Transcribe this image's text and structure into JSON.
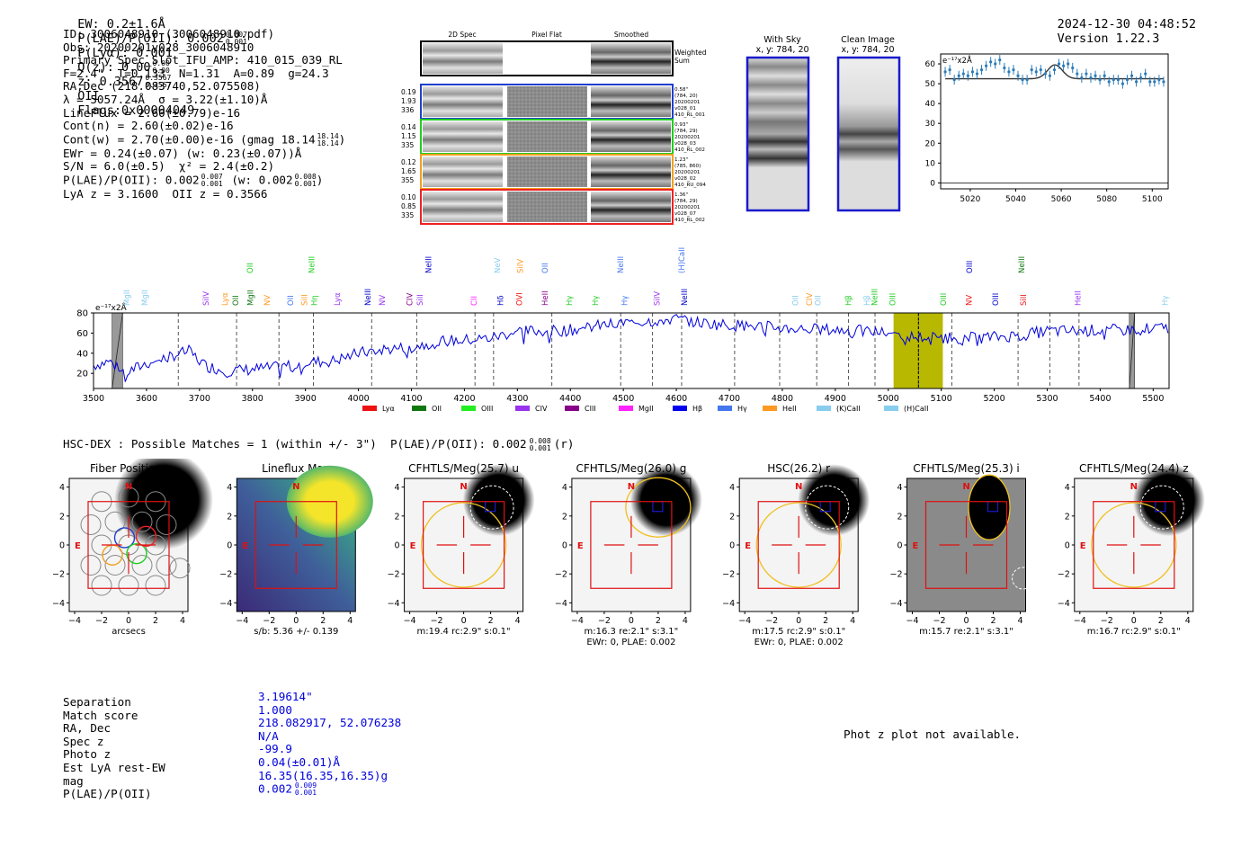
{
  "header": {
    "ew": "EW: 0.2±1.6Å",
    "plae": "P(LAE)/P(OII): 0.002",
    "plae_hi": "0.007",
    "plae_lo": "0.001",
    "plya": "P(Lyα): 0.001",
    "qz": "Q(z): 0.00",
    "qz_hi": "0.00",
    "qz_lo": "0.00",
    "z": "z: 0.3567",
    "z_hi": "0.3567",
    "z_lo": "0.3567",
    "z_line": "OII",
    "flags": "Flags:0x00004049",
    "datetime": "2024-12-30 04:48:52",
    "version": "Version 1.22.3"
  },
  "info": {
    "lines": [
      "ID: 3006048910 (3006048910.pdf)",
      "Obs: 20200201v028_3006048910",
      "Primary Spec_Slot_IFU_AMP: 410_015_039_RL",
      "F=2.4\"  T=0.133  N=1.31  A=0.89  g=24.3",
      "RA,Dec (218.083740,52.075508)",
      "λ = 5057.24Å  σ = 3.22(±1.10)Å",
      "LineFlux = 2.60(±0.79)e-16",
      "Cont(n) = 2.60(±0.02)e-16",
      "Cont(w) = 2.70(±0.00)e-16 (gmag 18.14",
      "EWr = 0.24(±0.07) (w: 0.23(±0.07))Å",
      "S/N = 6.0(±0.5)  χ² = 2.4(±0.2)",
      "P(LAE)/P(OII): 0.002",
      "LyA z = 3.1600  OII z = 0.3566"
    ],
    "gmag_hi": "18.14",
    "gmag_lo": "18.14",
    "plae_hi": "0.007",
    "plae_lo": "0.001",
    "plae_w": "(w: 0.002",
    "plae_w_hi": "0.008",
    "plae_w_lo": "0.001",
    "plae_w_close": ")"
  },
  "spec2d": {
    "col_titles": [
      "2D Spec",
      "Pixel Flat",
      "Smoothed"
    ],
    "weighted_sum": [
      "Weighted",
      "Sum"
    ],
    "fibers": [
      {
        "left": [
          "0.19",
          "1.93",
          "336"
        ],
        "right": [
          "0.58\"",
          "(784, 20)",
          "20200201",
          "v028_01",
          "410_RL_001"
        ],
        "color": "#1f3fcc"
      },
      {
        "left": [
          "0.14",
          "1.15",
          "335"
        ],
        "right": [
          "0.93\"",
          "(784, 29)",
          "20200201",
          "v028_03",
          "410_RL_002"
        ],
        "color": "#22cc22"
      },
      {
        "left": [
          "0.12",
          "1.65",
          "355"
        ],
        "right": [
          "1.23\"",
          "(785, 860)",
          "20200201",
          "v028_02",
          "410_RU_094"
        ],
        "color": "#f0a020"
      },
      {
        "left": [
          "0.10",
          "0.85",
          "335"
        ],
        "right": [
          "1.36\"",
          "(784, 29)",
          "20200201",
          "v028_07",
          "410_RL_002"
        ],
        "color": "#ee2222"
      }
    ]
  },
  "sky": {
    "with_sky": [
      "With Sky",
      "x, y: 784, 20"
    ],
    "clean": [
      "Clean Image",
      "x, y: 784, 20"
    ]
  },
  "zoom_chart": {
    "type": "scatter",
    "ylabel": "e⁻¹⁷x2Å",
    "xlim": [
      5007,
      5107
    ],
    "ylim": [
      -3,
      65
    ],
    "xticks": [
      5020,
      5040,
      5060,
      5080,
      5100
    ],
    "yticks": [
      0,
      10,
      20,
      30,
      40,
      50,
      60
    ],
    "points_x": [
      5009,
      5011,
      5013,
      5015,
      5017,
      5019,
      5021,
      5023,
      5025,
      5027,
      5029,
      5031,
      5033,
      5035,
      5037,
      5039,
      5041,
      5043,
      5045,
      5047,
      5049,
      5051,
      5053,
      5055,
      5057,
      5059,
      5061,
      5063,
      5065,
      5067,
      5069,
      5071,
      5073,
      5075,
      5077,
      5079,
      5081,
      5083,
      5085,
      5087,
      5089,
      5091,
      5093,
      5095,
      5097,
      5099,
      5101,
      5103,
      5105
    ],
    "points_y": [
      56,
      57,
      52,
      54,
      55,
      54,
      56,
      55,
      57,
      59,
      61,
      60,
      62,
      58,
      56,
      57,
      54,
      52,
      52,
      57,
      56,
      57,
      55,
      54,
      57,
      60,
      59,
      60,
      58,
      55,
      53,
      55,
      53,
      54,
      52,
      54,
      51,
      52,
      52,
      50,
      52,
      54,
      51,
      53,
      55,
      51,
      51,
      52,
      51
    ],
    "fit_base": 52.5,
    "fit_amp": 7,
    "fit_center": 5057.24,
    "fit_sigma": 3.22
  },
  "main_chart": {
    "type": "line",
    "ylabel": "e⁻¹⁷x2Å",
    "xlim": [
      3500,
      5530
    ],
    "ylim": [
      5,
      80
    ],
    "xticks": [
      3500,
      3600,
      3700,
      3800,
      3900,
      4000,
      4100,
      4200,
      4300,
      4400,
      4500,
      4600,
      4700,
      4800,
      4900,
      5000,
      5100,
      5200,
      5300,
      5400,
      5500
    ],
    "yticks": [
      20,
      40,
      60,
      80
    ],
    "highlight_x": [
      5010,
      5103
    ],
    "center_x": 5057,
    "bad_regions": [
      [
        3535,
        3555
      ],
      [
        5455,
        5465
      ]
    ],
    "dashed_x": [
      3660,
      3770,
      3850,
      3915,
      4025,
      4110,
      4220,
      4255,
      4365,
      4495,
      4555,
      4610,
      4710,
      4795,
      4865,
      4925,
      4975,
      5057,
      5120,
      5245,
      5305,
      5360
    ],
    "spectrum_anchors": [
      [
        3500,
        28
      ],
      [
        3530,
        32
      ],
      [
        3560,
        20
      ],
      [
        3600,
        30
      ],
      [
        3650,
        38
      ],
      [
        3680,
        42
      ],
      [
        3710,
        28
      ],
      [
        3750,
        22
      ],
      [
        3800,
        24
      ],
      [
        3850,
        26
      ],
      [
        3900,
        31
      ],
      [
        3950,
        32
      ],
      [
        4000,
        40
      ],
      [
        4050,
        44
      ],
      [
        4100,
        46
      ],
      [
        4150,
        52
      ],
      [
        4200,
        53
      ],
      [
        4250,
        55
      ],
      [
        4300,
        62
      ],
      [
        4350,
        62
      ],
      [
        4400,
        63
      ],
      [
        4450,
        67
      ],
      [
        4500,
        70
      ],
      [
        4550,
        72
      ],
      [
        4600,
        74
      ],
      [
        4650,
        70
      ],
      [
        4700,
        68
      ],
      [
        4750,
        67
      ],
      [
        4800,
        65
      ],
      [
        4850,
        64
      ],
      [
        4900,
        63
      ],
      [
        4950,
        62
      ],
      [
        5000,
        60
      ],
      [
        5050,
        56
      ],
      [
        5100,
        56
      ],
      [
        5150,
        55
      ],
      [
        5200,
        56
      ],
      [
        5250,
        58
      ],
      [
        5300,
        62
      ],
      [
        5350,
        62
      ],
      [
        5400,
        63
      ],
      [
        5450,
        63
      ],
      [
        5500,
        65
      ],
      [
        5530,
        65
      ]
    ],
    "legend": [
      {
        "label": "Lyα",
        "color": "#ee1111"
      },
      {
        "label": "OII",
        "color": "#117711"
      },
      {
        "label": "OIII",
        "color": "#22ee22"
      },
      {
        "label": "CIV",
        "color": "#9933ee"
      },
      {
        "label": "CIII",
        "color": "#880088"
      },
      {
        "label": "MgII",
        "color": "#ff22ff"
      },
      {
        "label": "Hβ",
        "color": "#0000ee"
      },
      {
        "label": "Hγ",
        "color": "#4477ee"
      },
      {
        "label": "HeII",
        "color": "#ff9922"
      },
      {
        "label": "(K)CaII",
        "color": "#88ccee"
      },
      {
        "label": "(H)CaII",
        "color": "#88ccee"
      }
    ],
    "line_labels": [
      {
        "x": 3563,
        "t": "MgII",
        "c": "#88ccee",
        "lvl": 0
      },
      {
        "x": 3597,
        "t": "MgII",
        "c": "#88ccee",
        "lvl": 0
      },
      {
        "x": 3712,
        "t": "SiIV",
        "c": "#9933ee",
        "lvl": 0
      },
      {
        "x": 3748,
        "t": "Lyα",
        "c": "#ff9922",
        "lvl": 0
      },
      {
        "x": 3768,
        "t": "OII",
        "c": "#117711",
        "lvl": 0
      },
      {
        "x": 3795,
        "t": "OII",
        "c": "#22cc22",
        "lvl": 2
      },
      {
        "x": 3796,
        "t": "MgII",
        "c": "#117711",
        "lvl": 0
      },
      {
        "x": 3828,
        "t": "NV",
        "c": "#ff9922",
        "lvl": 0
      },
      {
        "x": 3872,
        "t": "OII",
        "c": "#4477ee",
        "lvl": 0
      },
      {
        "x": 3898,
        "t": "SiII",
        "c": "#ff9922",
        "lvl": 0
      },
      {
        "x": 3917,
        "t": "Hη",
        "c": "#22cc22",
        "lvl": 0
      },
      {
        "x": 3912,
        "t": "NeIII",
        "c": "#22cc22",
        "lvl": 2
      },
      {
        "x": 3960,
        "t": "Lyα",
        "c": "#9933ee",
        "lvl": 0
      },
      {
        "x": 4018,
        "t": "NeIII",
        "c": "#0000cc",
        "lvl": 0
      },
      {
        "x": 4045,
        "t": "NV",
        "c": "#9933ee",
        "lvl": 0
      },
      {
        "x": 4097,
        "t": "CIV",
        "c": "#880088",
        "lvl": 0
      },
      {
        "x": 4116,
        "t": "SiII",
        "c": "#9933ee",
        "lvl": 0
      },
      {
        "x": 4132,
        "t": "NeIII",
        "c": "#0000cc",
        "lvl": 2
      },
      {
        "x": 4218,
        "t": "CII",
        "c": "#ff22ff",
        "lvl": 0
      },
      {
        "x": 4268,
        "t": "Hδ",
        "c": "#0000cc",
        "lvl": 0
      },
      {
        "x": 4262,
        "t": "NeV",
        "c": "#88ccee",
        "lvl": 2
      },
      {
        "x": 4304,
        "t": "OVI",
        "c": "#ee1111",
        "lvl": 0
      },
      {
        "x": 4305,
        "t": "SiIV",
        "c": "#ff9922",
        "lvl": 2
      },
      {
        "x": 4352,
        "t": "HeII",
        "c": "#880088",
        "lvl": 0
      },
      {
        "x": 4352,
        "t": "OII",
        "c": "#4477ee",
        "lvl": 2
      },
      {
        "x": 4398,
        "t": "Hγ",
        "c": "#22cc22",
        "lvl": 0
      },
      {
        "x": 4447,
        "t": "Hγ",
        "c": "#22cc22",
        "lvl": 0
      },
      {
        "x": 4502,
        "t": "Hγ",
        "c": "#4477ee",
        "lvl": 0
      },
      {
        "x": 4495,
        "t": "NeIII",
        "c": "#4477ee",
        "lvl": 2
      },
      {
        "x": 4563,
        "t": "SiIV",
        "c": "#9933ee",
        "lvl": 0
      },
      {
        "x": 4615,
        "t": "NeIII",
        "c": "#0000cc",
        "lvl": 0
      },
      {
        "x": 4610,
        "t": "(H)CaII",
        "c": "#4477ee",
        "lvl": 2
      },
      {
        "x": 4825,
        "t": "OII",
        "c": "#88ccee",
        "lvl": 0
      },
      {
        "x": 4851,
        "t": "CIV",
        "c": "#ff9922",
        "lvl": 0
      },
      {
        "x": 4867,
        "t": "OII",
        "c": "#88ccee",
        "lvl": 0
      },
      {
        "x": 4925,
        "t": "Hβ",
        "c": "#22cc22",
        "lvl": 0
      },
      {
        "x": 4960,
        "t": "Hβ",
        "c": "#88ccee",
        "lvl": 0
      },
      {
        "x": 4974,
        "t": "NeIII",
        "c": "#22cc22",
        "lvl": 0
      },
      {
        "x": 5008,
        "t": "OIII",
        "c": "#22cc22",
        "lvl": 0
      },
      {
        "x": 5104,
        "t": "OIII",
        "c": "#22cc22",
        "lvl": 0
      },
      {
        "x": 5152,
        "t": "NV",
        "c": "#ee1111",
        "lvl": 0
      },
      {
        "x": 5153,
        "t": "OIII",
        "c": "#0000cc",
        "lvl": 2
      },
      {
        "x": 5202,
        "t": "OIII",
        "c": "#0000cc",
        "lvl": 0
      },
      {
        "x": 5255,
        "t": "SiII",
        "c": "#ee1111",
        "lvl": 0
      },
      {
        "x": 5252,
        "t": "NeIII",
        "c": "#117711",
        "lvl": 2
      },
      {
        "x": 5358,
        "t": "HeII",
        "c": "#9933ee",
        "lvl": 0
      },
      {
        "x": 5522,
        "t": "Hγ",
        "c": "#88ccee",
        "lvl": 0
      }
    ]
  },
  "hsc": {
    "title": "HSC-DEX : Possible Matches = 1 (within +/- 3\")  P(LAE)/P(OII): 0.002",
    "plae_hi": "0.008",
    "plae_lo": "0.001",
    "suffix": "(r)"
  },
  "cutouts": [
    {
      "title": "Fiber Positions",
      "sub1": "arcsecs",
      "sub2": "",
      "kind": "fiber"
    },
    {
      "title": "Lineflux Map",
      "sub1": "s/b: 5.36 +/- 0.139",
      "sub2": "",
      "kind": "flux"
    },
    {
      "title": "CFHTLS/Meg(25.7) u",
      "sub1": "m:19.4 rc:2.9\"  s:0.1\"",
      "sub2": "",
      "kind": "u"
    },
    {
      "title": "CFHTLS/Meg(26.0) g",
      "sub1": "m:16.3  re:2.1\"  s:3.1\"",
      "sub2": "EWr: 0, PLAE: 0.002",
      "kind": "g"
    },
    {
      "title": "HSC(26.2) r",
      "sub1": "m:17.5 rc:2.9\"  s:0.1\"",
      "sub2": "EWr: 0, PLAE: 0.002",
      "kind": "r"
    },
    {
      "title": "CFHTLS/Meg(25.3) i",
      "sub1": "m:15.7  re:2.1\"  s:3.1\"",
      "sub2": "",
      "kind": "i"
    },
    {
      "title": "CFHTLS/Meg(24.4) z",
      "sub1": "m:16.7 rc:2.9\"  s:0.1\"",
      "sub2": "",
      "kind": "z"
    }
  ],
  "cutout_axes": {
    "ticks": [
      "−4",
      "−2",
      "0",
      "2",
      "4"
    ],
    "n_label": "N",
    "e_label": "E"
  },
  "match_table": {
    "labels": [
      "Separation",
      "Match score",
      "RA, Dec",
      "Spec z",
      "Photo z",
      "Est LyA rest-EW",
      "mag",
      "P(LAE)/P(OII)"
    ],
    "values": [
      "3.19614\"",
      "1.000",
      "218.082917, 52.076238",
      "N/A",
      "-99.9",
      "0.04(±0.01)Å",
      "16.35(16.35,16.35)g",
      "0.002"
    ],
    "plae_hi": "0.009",
    "plae_lo": "0.001"
  },
  "photz_note": "Phot z plot not available."
}
